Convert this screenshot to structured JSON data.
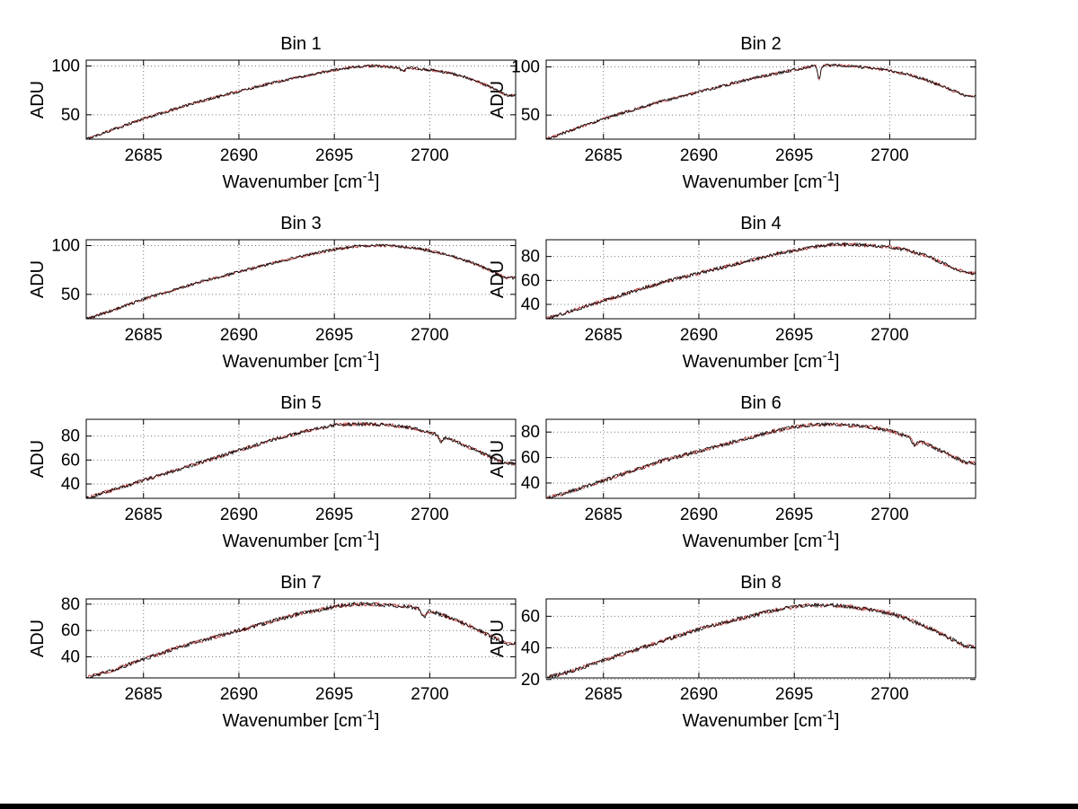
{
  "figure": {
    "background": "#ffffff",
    "axis_color": "#000000",
    "grid_color": "#777777",
    "series_colors": [
      "#000000",
      "#b22222"
    ],
    "xlabel_parts": {
      "pre": "Wavenumber [cm",
      "sup": "-1",
      "post": "]"
    }
  },
  "chart_data": {
    "type": "line",
    "xlabel": "Wavenumber [cm⁻¹]",
    "ylabel": "ADU",
    "xlim": [
      2682,
      2704.5
    ],
    "xticks": [
      2685,
      2690,
      2695,
      2700
    ],
    "x": [
      2682,
      2683,
      2684,
      2685,
      2686,
      2687,
      2688,
      2689,
      2690,
      2691,
      2692,
      2693,
      2694,
      2695,
      2696,
      2697,
      2698,
      2699,
      2700,
      2701,
      2702,
      2703,
      2704
    ],
    "legend": "none",
    "grid": "dotted",
    "charts": [
      {
        "title": "Bin 1",
        "ylim": [
          25,
          106
        ],
        "yticks": [
          50,
          100
        ],
        "adu": [
          25,
          32,
          39,
          46,
          52,
          58,
          64,
          69,
          74,
          79,
          84,
          88,
          92,
          96,
          99,
          100,
          99,
          98,
          96,
          93,
          88,
          80,
          70
        ],
        "noise": 1.5,
        "spikes": [
          {
            "x": 2698.6,
            "depth": 4,
            "width": 0.15
          }
        ]
      },
      {
        "title": "Bin 2",
        "ylim": [
          25,
          107
        ],
        "yticks": [
          50,
          100
        ],
        "adu": [
          25,
          32,
          39,
          46,
          52,
          58,
          64,
          69,
          74,
          79,
          84,
          89,
          93,
          97,
          101,
          102,
          101,
          99,
          96,
          92,
          86,
          78,
          70
        ],
        "noise": 1.5,
        "spikes": [
          {
            "x": 2696.3,
            "depth": 14,
            "width": 0.1
          }
        ]
      },
      {
        "title": "Bin 3",
        "ylim": [
          25,
          106
        ],
        "yticks": [
          50,
          100
        ],
        "adu": [
          25,
          31,
          38,
          45,
          51,
          57,
          63,
          68,
          73,
          78,
          83,
          88,
          92,
          96,
          99,
          100,
          100,
          98,
          95,
          90,
          84,
          76,
          67
        ],
        "noise": 1.5,
        "spikes": []
      },
      {
        "title": "Bin 4",
        "ylim": [
          28,
          94
        ],
        "yticks": [
          40,
          60,
          80
        ],
        "adu": [
          28,
          33,
          38,
          43,
          48,
          53,
          58,
          62,
          66,
          70,
          74,
          78,
          82,
          85,
          88,
          90,
          90,
          89,
          88,
          85,
          80,
          73,
          66
        ],
        "noise": 1.5,
        "spikes": []
      },
      {
        "title": "Bin 5",
        "ylim": [
          28,
          94
        ],
        "yticks": [
          40,
          60,
          80
        ],
        "adu": [
          28,
          33,
          38,
          43,
          48,
          53,
          58,
          63,
          68,
          73,
          78,
          82,
          86,
          89,
          90,
          90,
          89,
          87,
          83,
          78,
          71,
          64,
          57
        ],
        "noise": 1.5,
        "spikes": [
          {
            "x": 2700.6,
            "depth": 5,
            "width": 0.15
          }
        ]
      },
      {
        "title": "Bin 6",
        "ylim": [
          28,
          90
        ],
        "yticks": [
          40,
          60,
          80
        ],
        "adu": [
          28,
          32,
          37,
          42,
          47,
          52,
          57,
          61,
          65,
          69,
          73,
          77,
          81,
          84,
          86,
          86,
          85,
          84,
          81,
          76,
          70,
          63,
          56
        ],
        "noise": 1.5,
        "spikes": [
          {
            "x": 2701.3,
            "depth": 5,
            "width": 0.15
          }
        ]
      },
      {
        "title": "Bin 7",
        "ylim": [
          24,
          84
        ],
        "yticks": [
          40,
          60,
          80
        ],
        "adu": [
          24,
          28,
          33,
          38,
          43,
          48,
          52,
          56,
          60,
          64,
          68,
          72,
          75,
          78,
          80,
          80,
          79,
          78,
          75,
          70,
          64,
          57,
          50
        ],
        "noise": 1.5,
        "spikes": [
          {
            "x": 2699.7,
            "depth": 6,
            "width": 0.15
          }
        ]
      },
      {
        "title": "Bin 8",
        "ylim": [
          21,
          71
        ],
        "yticks": [
          20,
          40,
          60
        ],
        "adu": [
          21,
          24,
          28,
          32,
          36,
          40,
          44,
          48,
          52,
          55,
          58,
          61,
          64,
          66,
          67,
          67,
          66,
          64,
          62,
          58,
          53,
          47,
          41
        ],
        "noise": 1.3,
        "spikes": []
      }
    ]
  }
}
